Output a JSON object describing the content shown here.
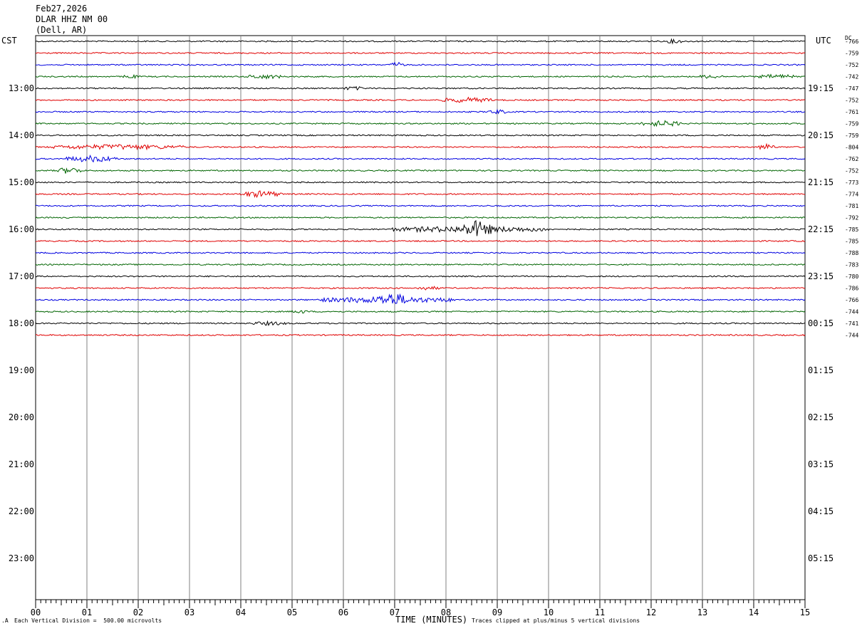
{
  "header": {
    "date": "Feb27,2026",
    "station": "DLAR HHZ NM 00",
    "location": "(Dell, AR)"
  },
  "chart_data": {
    "type": "line",
    "title": "Feb27,2026 DLAR HHZ NM 00 (Dell, AR)",
    "left_axis_label": "CST",
    "right_axis_label": "UTC",
    "dc_label": "DC",
    "xlabel": "TIME (MINUTES)",
    "xlim": [
      0,
      15
    ],
    "x_ticks": [
      "00",
      "01",
      "02",
      "03",
      "04",
      "05",
      "06",
      "07",
      "08",
      "09",
      "10",
      "11",
      "12",
      "13",
      "14",
      "15"
    ],
    "cst_hour_labels": [
      "13:00",
      "14:00",
      "15:00",
      "16:00",
      "17:00",
      "18:00",
      "19:00",
      "20:00",
      "21:00",
      "22:00",
      "23:00"
    ],
    "utc_hour_labels": [
      "19:15",
      "20:15",
      "21:15",
      "22:15",
      "23:15",
      "00:15",
      "01:15",
      "02:15",
      "03:15",
      "04:15",
      "05:15"
    ],
    "rows_per_hour": 4,
    "total_rows": 48,
    "trace_colors": [
      "#000000",
      "#e00000",
      "#0000e0",
      "#006400"
    ],
    "dc_offsets": [
      -766,
      -759,
      -752,
      -742,
      -747,
      -752,
      -761,
      -759,
      -759,
      -804,
      -762,
      -752,
      -773,
      -774,
      -781,
      -792,
      -785,
      -785,
      -788,
      -783,
      -780,
      -786,
      -766,
      -744,
      -741,
      -744
    ],
    "events": [
      {
        "row": 0,
        "start": 12.3,
        "end": 12.6,
        "amp": 2.5
      },
      {
        "row": 2,
        "start": 6.9,
        "end": 7.2,
        "amp": 3
      },
      {
        "row": 3,
        "start": 1.7,
        "end": 2.0,
        "amp": 2
      },
      {
        "row": 3,
        "start": 4.1,
        "end": 4.8,
        "amp": 2.5
      },
      {
        "row": 3,
        "start": 12.9,
        "end": 13.4,
        "amp": 2
      },
      {
        "row": 3,
        "start": 14.1,
        "end": 14.8,
        "amp": 2.5
      },
      {
        "row": 4,
        "start": 6.0,
        "end": 6.4,
        "amp": 2
      },
      {
        "row": 5,
        "start": 7.9,
        "end": 8.9,
        "amp": 3
      },
      {
        "row": 6,
        "start": 8.8,
        "end": 9.2,
        "amp": 2.5
      },
      {
        "row": 7,
        "start": 11.8,
        "end": 12.6,
        "amp": 3.5
      },
      {
        "row": 9,
        "start": 0.3,
        "end": 2.9,
        "amp": 3
      },
      {
        "row": 9,
        "start": 14.1,
        "end": 14.4,
        "amp": 4
      },
      {
        "row": 10,
        "start": 0.6,
        "end": 1.6,
        "amp": 4
      },
      {
        "row": 11,
        "start": 0.4,
        "end": 0.9,
        "amp": 4
      },
      {
        "row": 13,
        "start": 4.0,
        "end": 4.8,
        "amp": 4
      },
      {
        "row": 16,
        "start": 6.9,
        "end": 10.0,
        "amp": 4
      },
      {
        "row": 16,
        "start": 8.3,
        "end": 8.9,
        "amp": 12
      },
      {
        "row": 21,
        "start": 7.4,
        "end": 7.9,
        "amp": 2
      },
      {
        "row": 22,
        "start": 5.5,
        "end": 8.2,
        "amp": 4
      },
      {
        "row": 22,
        "start": 6.6,
        "end": 7.3,
        "amp": 9
      },
      {
        "row": 23,
        "start": 5.0,
        "end": 5.3,
        "amp": 2
      },
      {
        "row": 24,
        "start": 4.2,
        "end": 4.9,
        "amp": 2
      }
    ]
  },
  "footer": {
    "division_note": "Each Vertical Division =  500.00 microvolts",
    "clip_note": "Traces clipped at plus/minus 5 vertical divisions"
  }
}
